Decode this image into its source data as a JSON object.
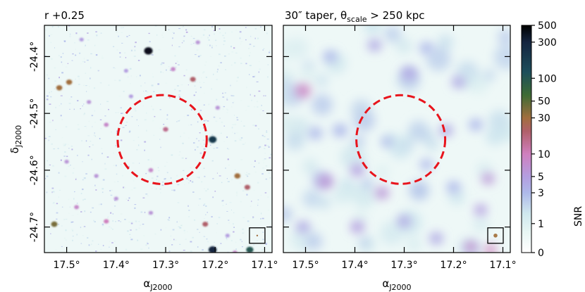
{
  "chart_data": [
    {
      "type": "heatmap",
      "title": "r +0.25",
      "xlabel": "α",
      "xlabel_sub": "J2000",
      "ylabel": "δ",
      "ylabel_sub": "J2000",
      "xlim": [
        17.545,
        17.085
      ],
      "ylim": [
        -24.745,
        -24.345
      ],
      "x_ticks": [
        17.5,
        17.4,
        17.3,
        17.2,
        17.1
      ],
      "x_tick_labels": [
        "17.5°",
        "17.4°",
        "17.3°",
        "17.2°",
        "17.1°"
      ],
      "y_ticks": [
        -24.4,
        -24.5,
        -24.6,
        -24.7
      ],
      "y_tick_labels": [
        "-24.4°",
        "-24.5°",
        "-24.6°",
        "-24.7°"
      ],
      "circle": {
        "ra": 17.307,
        "dec": -24.546,
        "radius_deg": 0.09,
        "color": "#e8141c",
        "style": "dashed"
      },
      "beam_box": {
        "ra": 17.115,
        "dec": -24.715,
        "beam_deg": 0.003
      },
      "background": "#eef8f7",
      "sources": [
        {
          "ra": 17.335,
          "dec": -24.39,
          "snr": 400
        },
        {
          "ra": 17.515,
          "dec": -24.455,
          "snr": 30
        },
        {
          "ra": 17.495,
          "dec": -24.445,
          "snr": 30
        },
        {
          "ra": 17.245,
          "dec": -24.44,
          "snr": 20
        },
        {
          "ra": 17.285,
          "dec": -24.422,
          "snr": 8
        },
        {
          "ra": 17.3,
          "dec": -24.528,
          "snr": 15
        },
        {
          "ra": 17.205,
          "dec": -24.546,
          "snr": 200
        },
        {
          "ra": 17.42,
          "dec": -24.52,
          "snr": 8
        },
        {
          "ra": 17.455,
          "dec": -24.48,
          "snr": 6
        },
        {
          "ra": 17.37,
          "dec": -24.47,
          "snr": 5
        },
        {
          "ra": 17.195,
          "dec": -24.49,
          "snr": 6
        },
        {
          "ra": 17.33,
          "dec": -24.6,
          "snr": 8
        },
        {
          "ra": 17.44,
          "dec": -24.61,
          "snr": 6
        },
        {
          "ra": 17.155,
          "dec": -24.61,
          "snr": 30
        },
        {
          "ra": 17.4,
          "dec": -24.65,
          "snr": 6
        },
        {
          "ra": 17.135,
          "dec": -24.63,
          "snr": 20
        },
        {
          "ra": 17.525,
          "dec": -24.695,
          "snr": 40
        },
        {
          "ra": 17.48,
          "dec": -24.665,
          "snr": 8
        },
        {
          "ra": 17.42,
          "dec": -24.69,
          "snr": 10
        },
        {
          "ra": 17.33,
          "dec": -24.675,
          "snr": 6
        },
        {
          "ra": 17.22,
          "dec": -24.695,
          "snr": 20
        },
        {
          "ra": 17.175,
          "dec": -24.715,
          "snr": 5
        },
        {
          "ra": 17.205,
          "dec": -24.74,
          "snr": 300
        },
        {
          "ra": 17.13,
          "dec": -24.74,
          "snr": 100
        },
        {
          "ra": 17.16,
          "dec": -24.745,
          "snr": 8
        },
        {
          "ra": 17.5,
          "dec": -24.585,
          "snr": 6
        },
        {
          "ra": 17.47,
          "dec": -24.37,
          "snr": 5
        },
        {
          "ra": 17.38,
          "dec": -24.425,
          "snr": 5
        },
        {
          "ra": 17.235,
          "dec": -24.375,
          "snr": 6
        }
      ]
    },
    {
      "type": "heatmap",
      "title": "30″ taper, θ",
      "title_sub": "scale",
      "title_tail": " > 250 kpc",
      "xlabel": "α",
      "xlabel_sub": "J2000",
      "xlim": [
        17.545,
        17.085
      ],
      "ylim": [
        -24.745,
        -24.345
      ],
      "x_ticks": [
        17.5,
        17.4,
        17.3,
        17.2,
        17.1
      ],
      "x_tick_labels": [
        "17.5°",
        "17.4°",
        "17.3°",
        "17.2°",
        "17.1°"
      ],
      "circle": {
        "ra": 17.307,
        "dec": -24.546,
        "radius_deg": 0.09,
        "color": "#e8141c",
        "style": "dashed"
      },
      "beam_box": {
        "ra": 17.115,
        "dec": -24.715,
        "beam_deg": 0.008
      },
      "background": "#eef8f7",
      "blobs": [
        {
          "ra": 17.505,
          "dec": -24.46,
          "snr": 9,
          "r_deg": 0.013
        },
        {
          "ra": 17.46,
          "dec": -24.62,
          "snr": 6,
          "r_deg": 0.014
        },
        {
          "ra": 17.395,
          "dec": -24.6,
          "snr": 5,
          "r_deg": 0.012
        },
        {
          "ra": 17.345,
          "dec": -24.64,
          "snr": 6,
          "r_deg": 0.012
        },
        {
          "ra": 17.395,
          "dec": -24.7,
          "snr": 5,
          "r_deg": 0.012
        },
        {
          "ra": 17.3,
          "dec": -24.69,
          "snr": 4,
          "r_deg": 0.012
        },
        {
          "ra": 17.29,
          "dec": -24.43,
          "snr": 4,
          "r_deg": 0.014
        },
        {
          "ra": 17.36,
          "dec": -24.38,
          "snr": 4,
          "r_deg": 0.012
        },
        {
          "ra": 17.255,
          "dec": -24.385,
          "snr": 3,
          "r_deg": 0.012
        },
        {
          "ra": 17.19,
          "dec": -24.445,
          "snr": 4,
          "r_deg": 0.012
        },
        {
          "ra": 17.215,
          "dec": -24.53,
          "snr": 4,
          "r_deg": 0.012
        },
        {
          "ra": 17.155,
          "dec": -24.52,
          "snr": 3,
          "r_deg": 0.012
        },
        {
          "ra": 17.13,
          "dec": -24.615,
          "snr": 6,
          "r_deg": 0.011
        },
        {
          "ra": 17.145,
          "dec": -24.67,
          "snr": 5,
          "r_deg": 0.011
        },
        {
          "ra": 17.2,
          "dec": -24.63,
          "snr": 3,
          "r_deg": 0.012
        },
        {
          "ra": 17.165,
          "dec": -24.735,
          "snr": 8,
          "r_deg": 0.01
        },
        {
          "ra": 17.125,
          "dec": -24.74,
          "snr": 10,
          "r_deg": 0.01
        },
        {
          "ra": 17.43,
          "dec": -24.53,
          "snr": 3,
          "r_deg": 0.013
        },
        {
          "ra": 17.48,
          "dec": -24.535,
          "snr": 3,
          "r_deg": 0.012
        },
        {
          "ra": 17.505,
          "dec": -24.7,
          "snr": 4,
          "r_deg": 0.012
        },
        {
          "ra": 17.335,
          "dec": -24.55,
          "snr": 3,
          "r_deg": 0.01
        },
        {
          "ra": 17.255,
          "dec": -24.59,
          "snr": 3,
          "r_deg": 0.011
        },
        {
          "ra": 17.45,
          "dec": -24.4,
          "snr": 3,
          "r_deg": 0.012
        },
        {
          "ra": 17.235,
          "dec": -24.72,
          "snr": 4,
          "r_deg": 0.012
        }
      ]
    },
    {
      "type": "colorbar",
      "label": "SNR",
      "scale": "asinh",
      "range": [
        0,
        500
      ],
      "ticks": [
        0,
        1,
        3,
        5,
        10,
        30,
        50,
        100,
        300,
        500
      ],
      "tick_labels": [
        "0",
        "1",
        "3",
        "5",
        "10",
        "30",
        "50",
        "100",
        "300",
        "500"
      ],
      "colormap": [
        {
          "v": 0,
          "color": "#ffffff"
        },
        {
          "v": 0.7,
          "color": "#e6f5f3"
        },
        {
          "v": 1.5,
          "color": "#cfe7ee"
        },
        {
          "v": 3,
          "color": "#aeb9ea"
        },
        {
          "v": 5,
          "color": "#b39ee0"
        },
        {
          "v": 10,
          "color": "#cf7fbe"
        },
        {
          "v": 20,
          "color": "#b0606a"
        },
        {
          "v": 30,
          "color": "#a16e3e"
        },
        {
          "v": 60,
          "color": "#3e6b34"
        },
        {
          "v": 120,
          "color": "#1d4e5b"
        },
        {
          "v": 300,
          "color": "#152540"
        },
        {
          "v": 500,
          "color": "#000000"
        }
      ]
    }
  ]
}
